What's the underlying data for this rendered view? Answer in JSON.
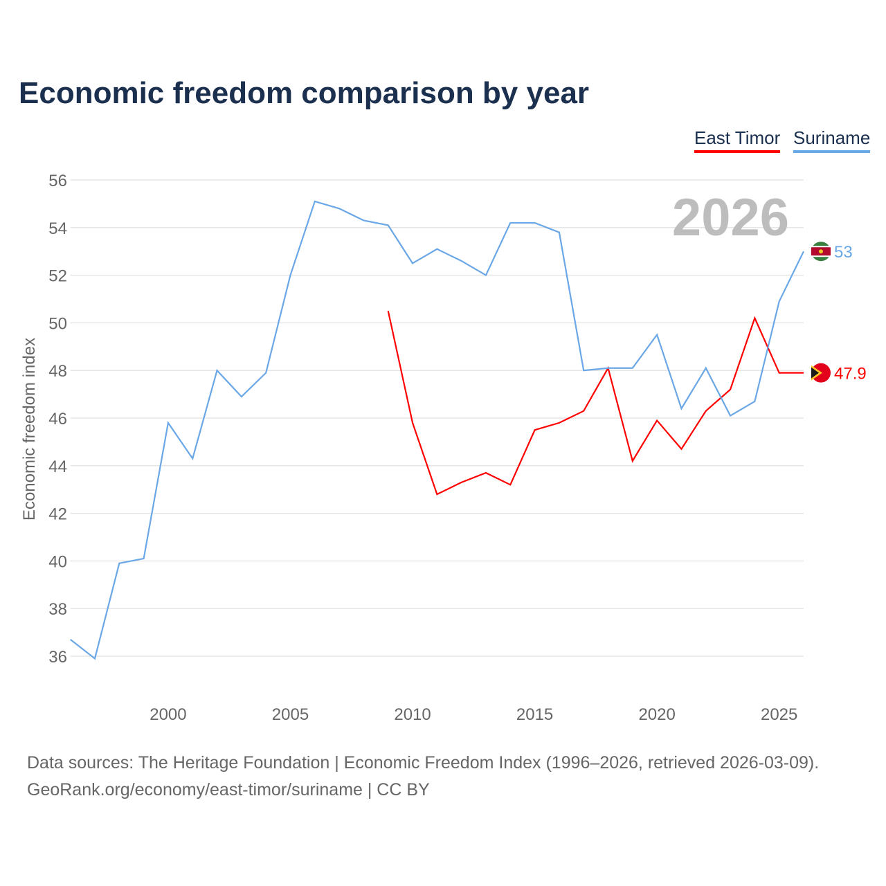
{
  "chart_data": {
    "type": "line",
    "title": "Economic freedom comparison by year",
    "xlabel": "",
    "ylabel": "Economic freedom index",
    "xlim": [
      1996,
      2026
    ],
    "ylim": [
      36,
      56
    ],
    "yticks": [
      36,
      38,
      40,
      42,
      44,
      46,
      48,
      50,
      52,
      54,
      56
    ],
    "xticks": [
      2000,
      2005,
      2010,
      2015,
      2020,
      2025
    ],
    "grid": true,
    "legend_placement": "top-right",
    "year_label": "2026",
    "series": [
      {
        "name": "East Timor",
        "color": "#ff0000",
        "end_label": "47.9",
        "x": [
          2009,
          2010,
          2011,
          2012,
          2013,
          2014,
          2015,
          2016,
          2017,
          2018,
          2019,
          2020,
          2021,
          2022,
          2023,
          2024,
          2025,
          2026
        ],
        "values": [
          50.5,
          45.8,
          42.8,
          43.3,
          43.7,
          43.2,
          45.5,
          45.8,
          46.3,
          48.1,
          44.2,
          45.9,
          44.7,
          46.3,
          47.2,
          50.2,
          47.9,
          47.9
        ]
      },
      {
        "name": "Suriname",
        "color": "#6aa7e6",
        "end_label": "53",
        "x": [
          1996,
          1997,
          1998,
          1999,
          2000,
          2001,
          2002,
          2003,
          2004,
          2005,
          2006,
          2007,
          2008,
          2009,
          2010,
          2011,
          2012,
          2013,
          2014,
          2015,
          2016,
          2017,
          2018,
          2019,
          2020,
          2021,
          2022,
          2023,
          2024,
          2025,
          2026
        ],
        "values": [
          36.7,
          35.9,
          39.9,
          40.1,
          45.8,
          44.3,
          48.0,
          46.9,
          47.9,
          52.0,
          55.1,
          54.8,
          54.3,
          54.1,
          52.5,
          53.1,
          52.6,
          52.0,
          54.2,
          54.2,
          53.8,
          48.0,
          48.1,
          48.1,
          49.5,
          46.4,
          48.1,
          46.1,
          46.7,
          50.9,
          53.0
        ]
      }
    ]
  },
  "source_line1": "Data sources: The Heritage Foundation | Economic Freedom Index (1996–2026, retrieved 2026-03-09).",
  "source_line2": "GeoRank.org/economy/east-timor/suriname | CC BY"
}
